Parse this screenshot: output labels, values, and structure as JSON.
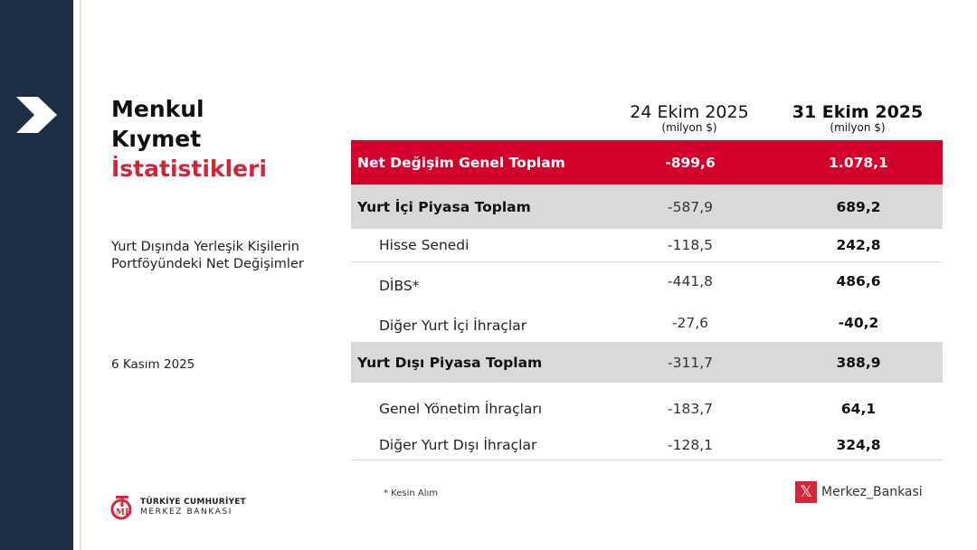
{
  "title": {
    "line1": "Menkul",
    "line2": "Kıymet",
    "line3": "İstatistikleri"
  },
  "subtitle": {
    "line1": "Yurt Dışında Yerleşik Kişilerin",
    "line2": "Portföyündeki Net Değişimler"
  },
  "date": "6 Kasım 2025",
  "logo": {
    "line1": "TÜRKİYE CUMHURİYET",
    "line2": "MERKEZ BANKASI"
  },
  "columns": [
    {
      "date": "24 Ekim 2025",
      "unit": "(milyon $)"
    },
    {
      "date": "31 Ekim 2025",
      "unit": "(milyon $)"
    }
  ],
  "rows": [
    {
      "label": "Net Değişim Genel Toplam",
      "a": "-899,6",
      "b": "1.078,1"
    },
    {
      "label": "Yurt İçi Piyasa Toplam",
      "a": "-587,9",
      "b": "689,2"
    },
    {
      "label": "Hisse Senedi",
      "a": "-118,5",
      "b": "242,8"
    },
    {
      "label": "DİBS*",
      "a": "-441,8",
      "b": "486,6"
    },
    {
      "label": "Diğer Yurt İçi İhraçlar",
      "a": "-27,6",
      "b": "-40,2"
    },
    {
      "label": "Yurt Dışı Piyasa Toplam",
      "a": "-311,7",
      "b": "388,9"
    },
    {
      "label": "Genel Yönetim İhraçları",
      "a": "-183,7",
      "b": "64,1"
    },
    {
      "label": "Diğer Yurt Dışı İhraçlar",
      "a": "-128,1",
      "b": "324,8"
    }
  ],
  "footnote": "* Kesin Alım",
  "social": {
    "icon": "x-icon",
    "handle": "Merkez_Bankasi"
  },
  "colors": {
    "sidebar": "#1d2f45",
    "accent": "#d4002c",
    "gray_row": "#d9d9d9"
  }
}
